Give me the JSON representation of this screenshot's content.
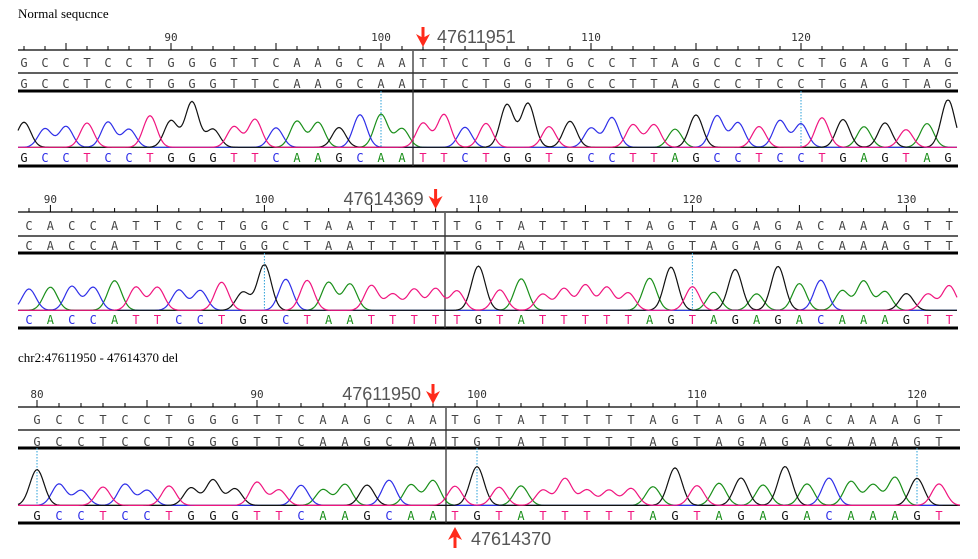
{
  "colors": {
    "A": "#1a8f1a",
    "C": "#2f2fe8",
    "G": "#111111",
    "T": "#f0157f",
    "marker": "#ff2a1a",
    "guide": "#2a9fd8",
    "row_text": "#444444"
  },
  "panels": [
    {
      "title": "Normal sequcnce",
      "first_position": 83,
      "tick_labels": [
        "90",
        "100",
        "110",
        "120"
      ],
      "sequence_left": "GCCTCCTGGGTTCAAGCAA",
      "sequence_right": "TTCTGGTGCCTTAGCCTCCTGAGTAG",
      "guide_positions": [
        100,
        120
      ],
      "markers": [
        {
          "label": "47611951",
          "direction": "down",
          "position": 102
        }
      ]
    },
    {
      "title": "",
      "first_position": 89,
      "tick_labels": [
        "90",
        "100",
        "110",
        "120",
        "130"
      ],
      "sequence_left": "CACCATTCCTGGCTAATTTT",
      "sequence_right": "TGTATTTTTAGTAGAGACAAAGTT",
      "guide_positions": [
        100,
        120
      ],
      "markers": [
        {
          "label": "47614369",
          "direction": "down",
          "position": 108
        }
      ]
    },
    {
      "title": "chr2:47611950 - 47614370 del",
      "first_position": 80,
      "tick_labels": [
        "80",
        "90",
        "100",
        "110",
        "120"
      ],
      "sequence_left": "GCCTCCTGGGTTCAAGCAA",
      "sequence_right": "TGTATTTTTAGTAGAGACAAAGT",
      "guide_positions": [
        80,
        100,
        120
      ],
      "markers": [
        {
          "label": "47611950",
          "direction": "down",
          "position": 98
        },
        {
          "label": "47614370",
          "direction": "up",
          "position": 99
        }
      ]
    }
  ]
}
